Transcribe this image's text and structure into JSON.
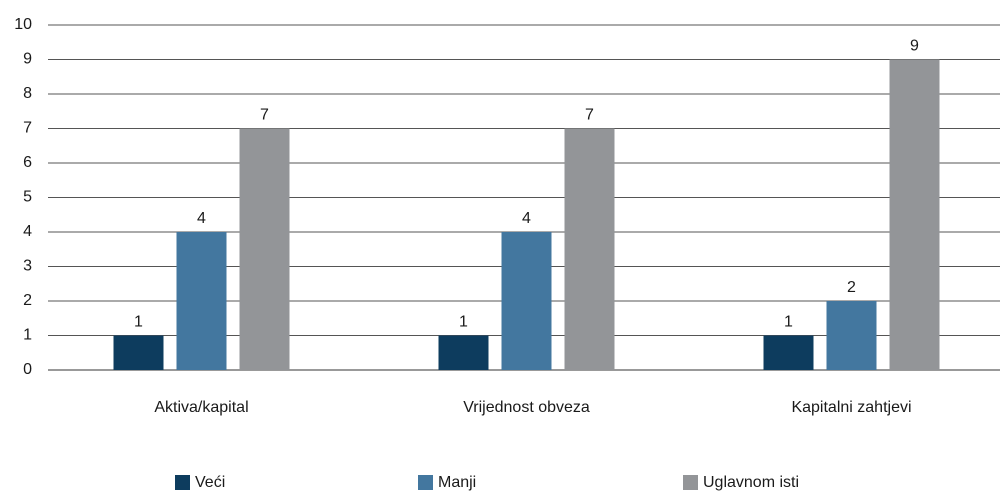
{
  "chart_data": {
    "type": "bar",
    "categories": [
      "Aktiva/kapital",
      "Vrijednost obveza",
      "Kapitalni zahtjevi"
    ],
    "series": [
      {
        "name": "Veći",
        "color": "#0d3c5e",
        "values": [
          1,
          1,
          1
        ]
      },
      {
        "name": "Manji",
        "color": "#43779f",
        "values": [
          4,
          4,
          2
        ]
      },
      {
        "name": "Uglavnom isti",
        "color": "#939598",
        "values": [
          7,
          7,
          9
        ]
      }
    ],
    "ylim": [
      0,
      10
    ],
    "yticks": [
      0,
      1,
      2,
      3,
      4,
      5,
      6,
      7,
      8,
      9,
      10
    ],
    "grid": true,
    "legend": "bottom"
  }
}
